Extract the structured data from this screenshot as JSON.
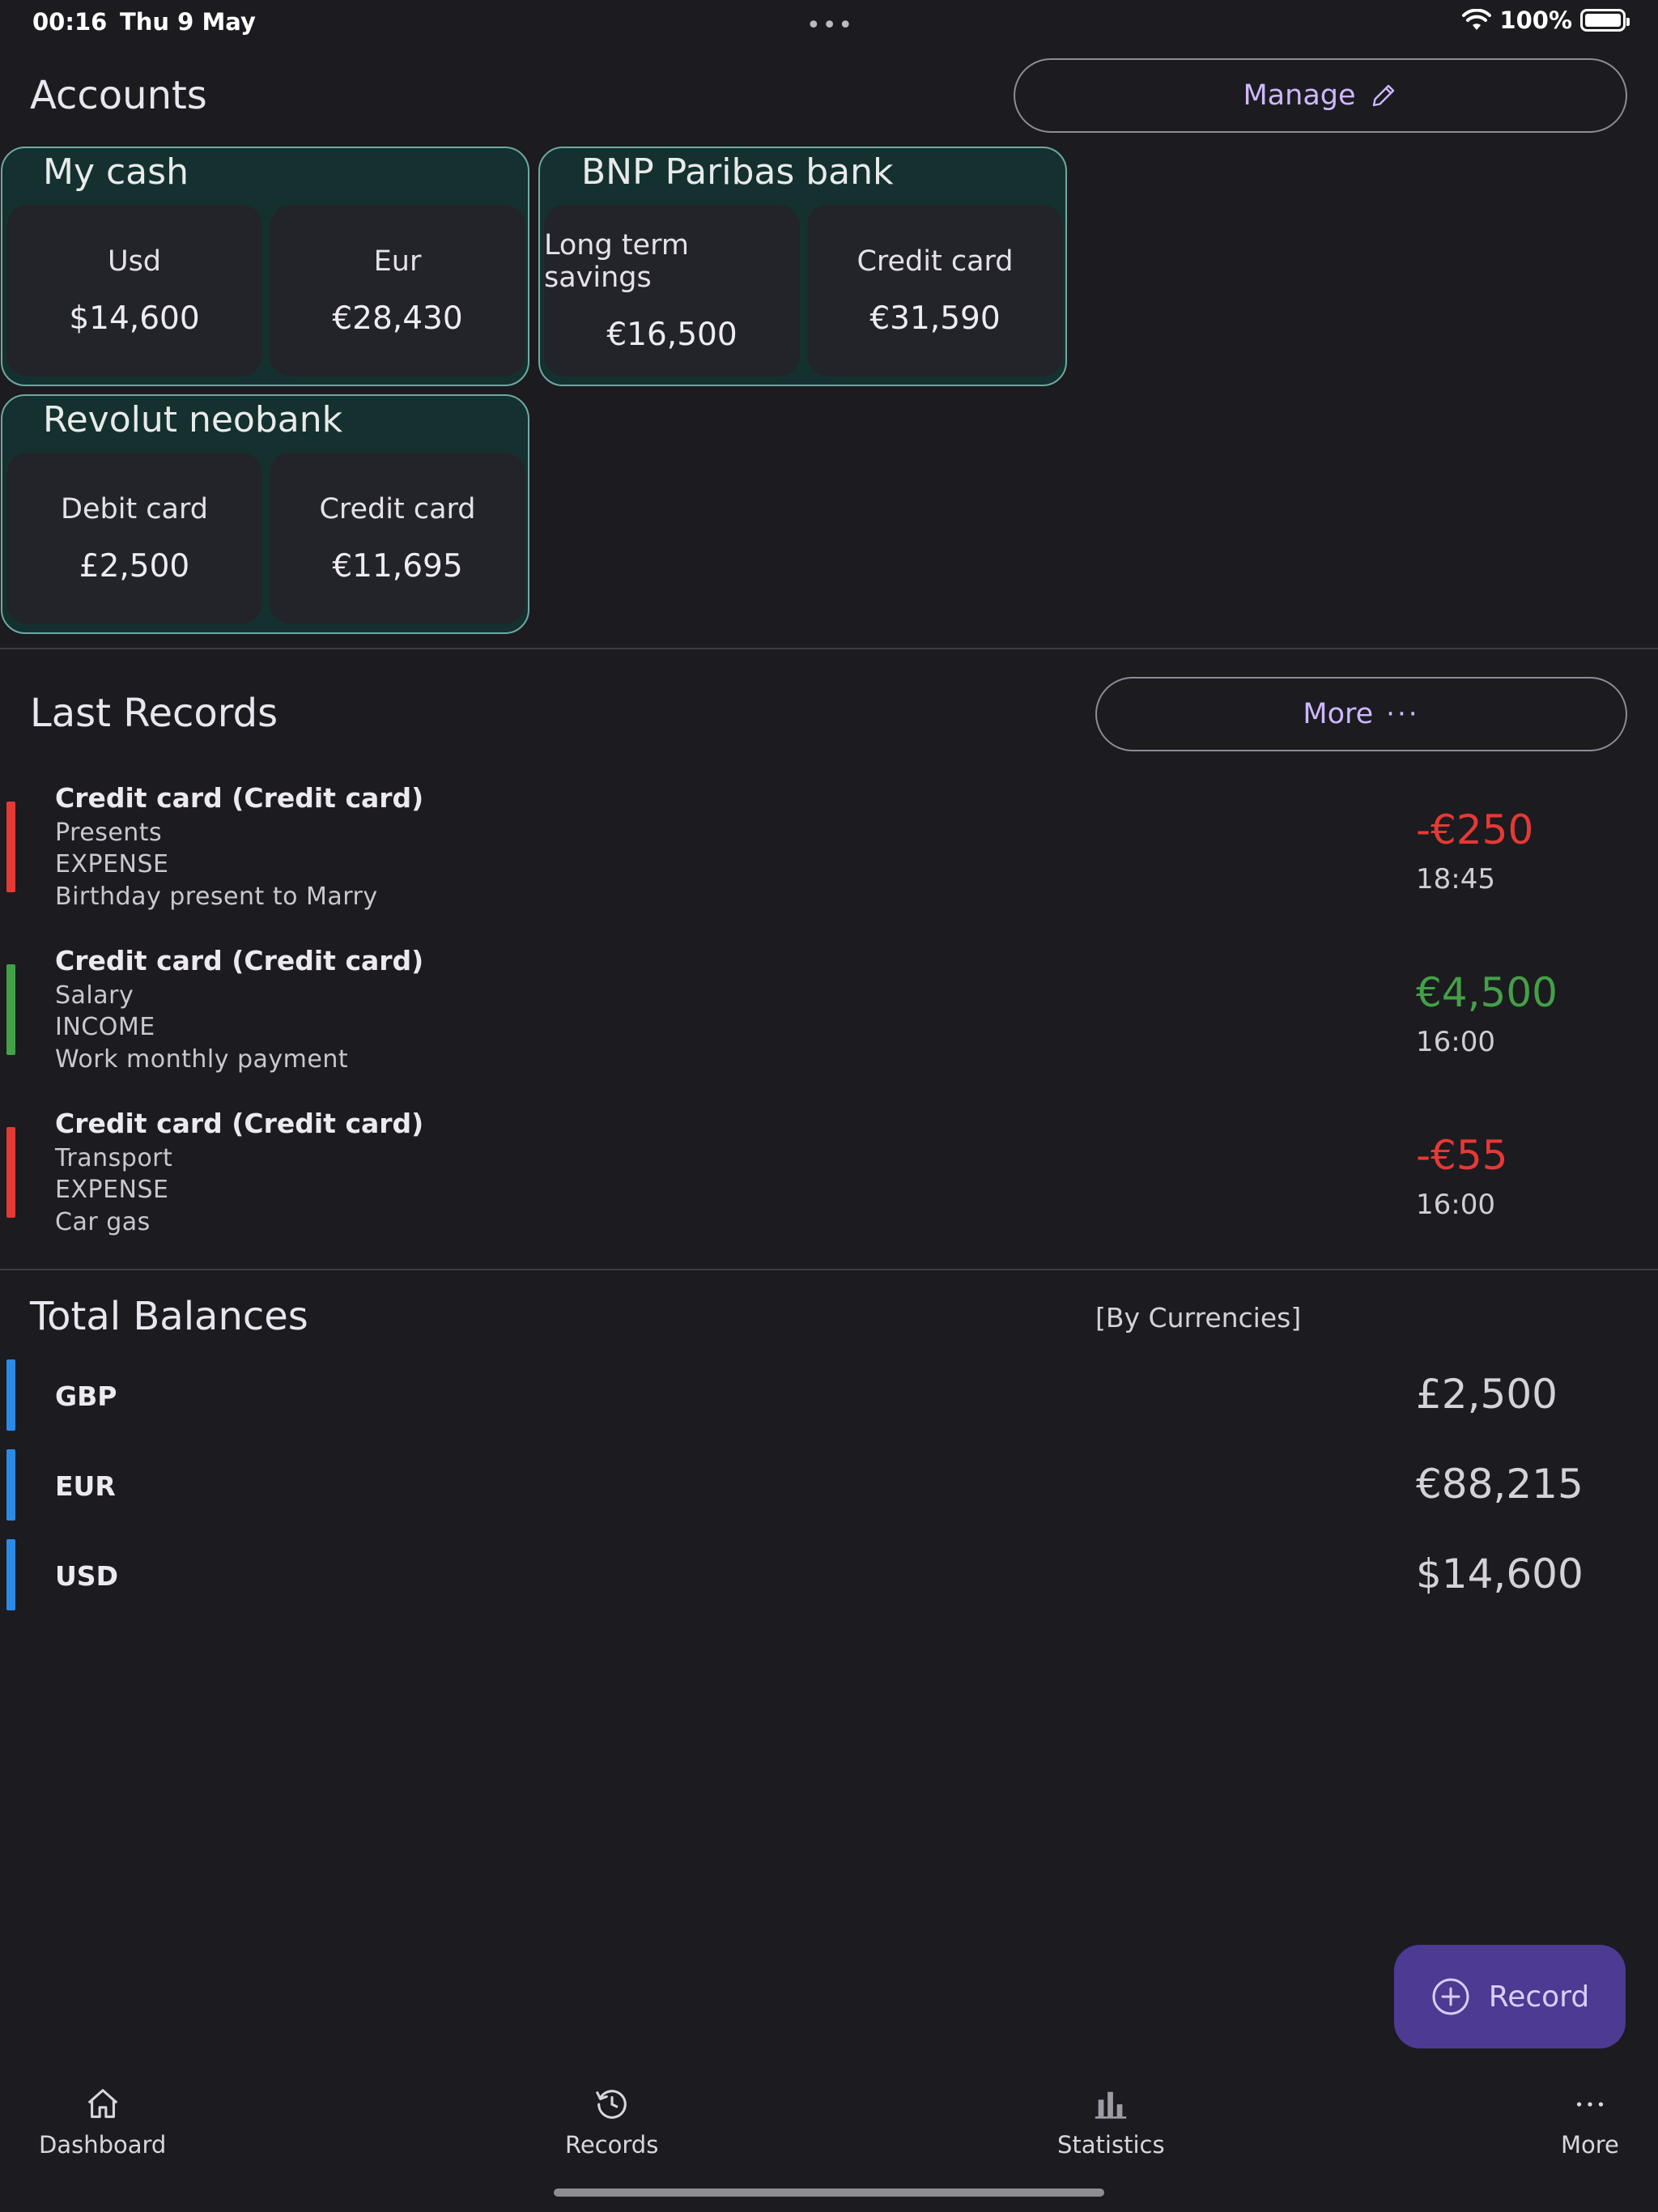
{
  "status_bar": {
    "time": "00:16",
    "date": "Thu 9 May",
    "battery": "100%"
  },
  "accounts": {
    "title": "Accounts",
    "manage_label": "Manage",
    "groups": [
      {
        "name": "My cash",
        "items": [
          {
            "name": "Usd",
            "balance": "$14,600"
          },
          {
            "name": "Eur",
            "balance": "€28,430"
          }
        ]
      },
      {
        "name": "BNP Paribas bank",
        "items": [
          {
            "name": "Long term savings",
            "balance": "€16,500"
          },
          {
            "name": "Credit card",
            "balance": "€31,590"
          }
        ]
      },
      {
        "name": "Revolut neobank",
        "items": [
          {
            "name": "Debit card",
            "balance": "£2,500"
          },
          {
            "name": "Credit card",
            "balance": "€11,695"
          }
        ]
      }
    ]
  },
  "last_records": {
    "title": "Last Records",
    "more_label": "More",
    "items": [
      {
        "account": "Credit card (Credit card)",
        "category": "Presents",
        "type": "EXPENSE",
        "note": "Birthday present to Marry",
        "amount": "-€250",
        "time": "18:45",
        "color": "#e53935"
      },
      {
        "account": "Credit card (Credit card)",
        "category": "Salary",
        "type": "INCOME",
        "note": "Work monthly payment",
        "amount": "€4,500",
        "time": "16:00",
        "color": "#43a047"
      },
      {
        "account": "Credit card (Credit card)",
        "category": "Transport",
        "type": "EXPENSE",
        "note": "Car gas",
        "amount": "-€55",
        "time": "16:00",
        "color": "#e53935"
      }
    ]
  },
  "total_balances": {
    "title": "Total Balances",
    "subtitle": "[By Currencies]",
    "items": [
      {
        "currency": "GBP",
        "amount": "£2,500"
      },
      {
        "currency": "EUR",
        "amount": "€88,215"
      },
      {
        "currency": "USD",
        "amount": "$14,600"
      }
    ]
  },
  "fab": {
    "label": "Record",
    "icon": "plus-circle-icon"
  },
  "nav": [
    {
      "label": "Dashboard",
      "icon": "home-icon"
    },
    {
      "label": "Records",
      "icon": "history-icon"
    },
    {
      "label": "Statistics",
      "icon": "bar-chart-icon"
    },
    {
      "label": "More",
      "icon": "more-horizontal-icon"
    }
  ],
  "colors": {
    "expense": "#e53935",
    "income": "#43a047",
    "balance_bar": "#2b8ae6",
    "accent": "#cdb8ff",
    "fab": "#4d3a93"
  }
}
